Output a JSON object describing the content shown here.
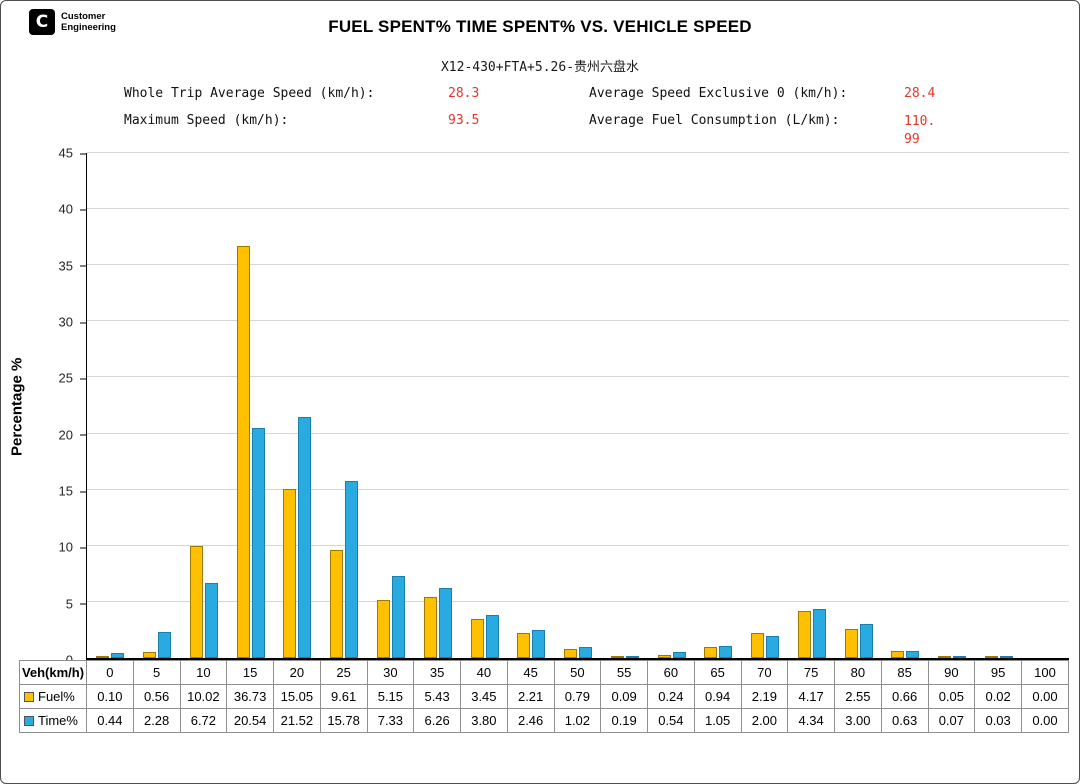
{
  "logo": {
    "line1": "Customer",
    "line2": "Engineering",
    "mark": "C"
  },
  "header": {
    "title": "FUEL SPENT% TIME SPENT% VS. VEHICLE SPEED",
    "subtitle": "X12-430+FTA+5.26-贵州六盘水"
  },
  "stats": {
    "left": [
      {
        "label": "Whole Trip Average Speed (km/h):",
        "value": "28.3"
      },
      {
        "label": "Maximum Speed (km/h):",
        "value": "93.5"
      }
    ],
    "right": [
      {
        "label": "Average Speed Exclusive 0 (km/h):",
        "value": "28.4"
      },
      {
        "label": "Average Fuel Consumption (L/km):",
        "value": "110.99"
      }
    ]
  },
  "colors": {
    "accent_red": "#e8352a",
    "grid": "#d6d6d6",
    "axis": "#000000"
  },
  "chart_data": {
    "type": "bar",
    "title": "FUEL SPENT% TIME SPENT% VS. VEHICLE SPEED",
    "xlabel": "Veh(km/h)",
    "ylabel": "Percentage %",
    "ylim": [
      0,
      45
    ],
    "ytick_step": 5,
    "grid": true,
    "legend_position": "table-left",
    "categories": [
      0,
      5,
      10,
      15,
      20,
      25,
      30,
      35,
      40,
      45,
      50,
      55,
      60,
      65,
      70,
      75,
      80,
      85,
      90,
      95,
      100
    ],
    "series": [
      {
        "name": "Fuel%",
        "color": "#FFC000",
        "border": "#9c7a00",
        "values": [
          0.1,
          0.56,
          10.02,
          36.73,
          15.05,
          9.61,
          5.15,
          5.43,
          3.45,
          2.21,
          0.79,
          0.09,
          0.24,
          0.94,
          2.19,
          4.17,
          2.55,
          0.66,
          0.05,
          0.02,
          0.0
        ]
      },
      {
        "name": "Time%",
        "color": "#29ABE2",
        "border": "#1a7fad",
        "values": [
          0.44,
          2.28,
          6.72,
          20.54,
          21.52,
          15.78,
          7.33,
          6.26,
          3.8,
          2.46,
          1.02,
          0.19,
          0.54,
          1.05,
          2.0,
          4.34,
          3.0,
          0.63,
          0.07,
          0.03,
          0.0
        ]
      }
    ]
  },
  "table": {
    "corner_label": "Veh(km/h)"
  }
}
